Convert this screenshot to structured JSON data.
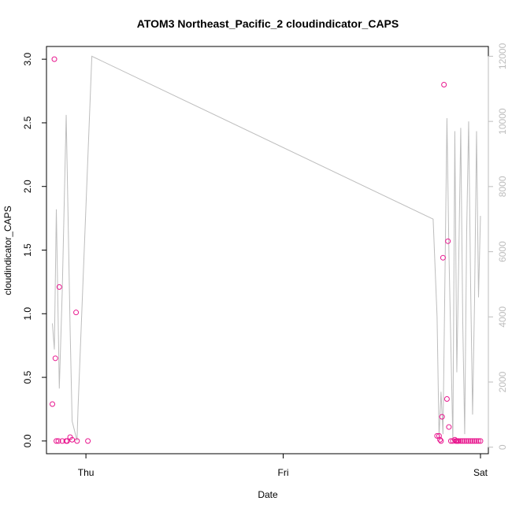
{
  "chart_data": {
    "type": "scatter",
    "title": "ATOM3 Northeast_Pacific_2 cloudindicator_CAPS",
    "xlabel": "Date",
    "ylabel": "cloudindicator_CAPS",
    "x_ticks": [
      "Thu",
      "Fri",
      "Sat"
    ],
    "x_range_days": [
      -0.2,
      2.04
    ],
    "ylim": [
      -0.1,
      3.1
    ],
    "y_ticks": [
      "0.0",
      "0.5",
      "1.0",
      "1.5",
      "2.0",
      "2.5",
      "3.0"
    ],
    "y2lim": [
      -200,
      12300
    ],
    "y2_ticks": [
      "0",
      "2000",
      "4000",
      "6000",
      "8000",
      "10000",
      "12000"
    ],
    "grid": false,
    "colors": {
      "points": "#e8168e",
      "line": "#bdbdbd",
      "axis": "#000000",
      "axis_right": "#bdbdbd"
    },
    "series": [
      {
        "marker": "circle-open",
        "x": [
          -0.17,
          -0.16,
          -0.155,
          -0.15,
          -0.14,
          -0.135,
          -0.12,
          -0.1,
          -0.095,
          -0.08,
          -0.07,
          -0.05,
          -0.045,
          0.01,
          1.78,
          1.79,
          1.795,
          1.8,
          1.805,
          1.81,
          1.815,
          1.83,
          1.835,
          1.84,
          1.85,
          1.86,
          1.87,
          1.875,
          1.88,
          1.885,
          1.89,
          1.9,
          1.91,
          1.92,
          1.93,
          1.94,
          1.95,
          1.96,
          1.97,
          1.98,
          1.99,
          2.0
        ],
        "y": [
          0.29,
          3.0,
          0.65,
          0.0,
          0.0,
          1.21,
          0.0,
          0.0,
          0.0,
          0.03,
          0.01,
          1.01,
          0.0,
          0.0,
          0.04,
          0.04,
          0.01,
          0.0,
          0.19,
          1.44,
          2.8,
          0.33,
          1.57,
          0.11,
          0.0,
          0.0,
          0.01,
          0.0,
          0.0,
          0.0,
          0.0,
          0.0,
          0.0,
          0.0,
          0.0,
          0.0,
          0.0,
          0.0,
          0.0,
          0.0,
          0.0,
          0.0
        ]
      },
      {
        "marker": "line",
        "axis": "right",
        "x": [
          -0.17,
          -0.16,
          -0.15,
          -0.135,
          -0.12,
          -0.1,
          -0.08,
          -0.07,
          -0.045,
          -0.04,
          0.03,
          1.76,
          1.78,
          1.79,
          1.8,
          1.81,
          1.83,
          1.84,
          1.86,
          1.87,
          1.88,
          1.89,
          1.9,
          1.91,
          1.92,
          1.93,
          1.94,
          1.95,
          1.96,
          1.97,
          1.98,
          1.99,
          2.0
        ],
        "y": [
          3800,
          3000,
          7300,
          1800,
          4800,
          10200,
          3600,
          800,
          200,
          1200,
          12000,
          7000,
          4000,
          300,
          1700,
          400,
          10100,
          6000,
          200,
          9700,
          2300,
          5800,
          9800,
          3900,
          400,
          6600,
          10000,
          5000,
          1000,
          4500,
          9700,
          4600,
          7100
        ]
      }
    ]
  }
}
